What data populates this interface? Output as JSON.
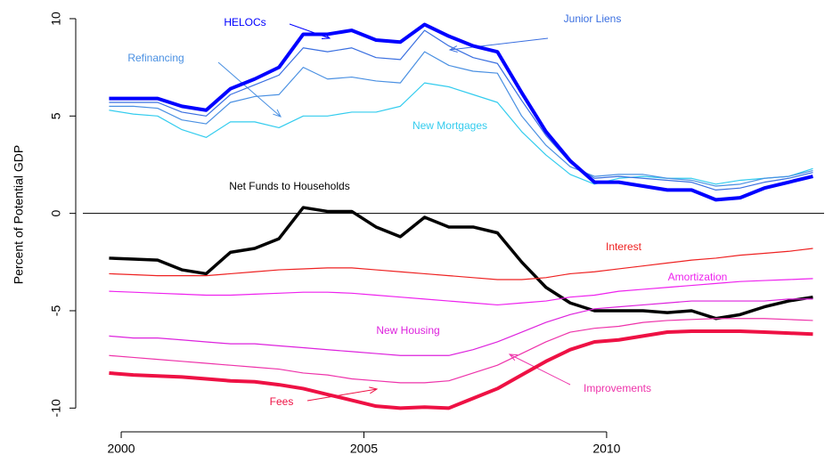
{
  "chart_data": {
    "type": "line",
    "y_label": "Percent of Potential GDP",
    "x": [
      1999.75,
      2000.25,
      2000.75,
      2001.25,
      2001.75,
      2002.25,
      2002.75,
      2003.25,
      2003.75,
      2004.25,
      2004.75,
      2005.25,
      2005.75,
      2006.25,
      2006.75,
      2007.25,
      2007.75,
      2008.25,
      2008.75,
      2009.25,
      2009.75,
      2010.25,
      2010.75,
      2011.25,
      2011.75,
      2012.25,
      2012.75,
      2013.25,
      2013.75,
      2014.25
    ],
    "xlim": [
      1999.21,
      2014.48
    ],
    "xticks": [
      2000,
      2005,
      2010
    ],
    "ylim": [
      -10.9,
      10.73
    ],
    "yticks": [
      -10,
      -5,
      0,
      5,
      10
    ],
    "series": [
      {
        "name": "New Mortgages",
        "color": "#33ccee",
        "values": [
          5.3,
          5.1,
          5.0,
          4.3,
          3.9,
          4.7,
          4.7,
          4.4,
          5.0,
          5.0,
          5.2,
          5.2,
          5.5,
          6.7,
          6.5,
          6.1,
          5.7,
          4.2,
          3.0,
          2.0,
          1.5,
          1.8,
          1.9,
          1.8,
          1.8,
          1.5,
          1.7,
          1.8,
          1.9,
          2.3
        ]
      },
      {
        "name": "Refinancing",
        "color": "#4a90e2",
        "values": [
          5.5,
          5.5,
          5.4,
          4.8,
          4.6,
          5.7,
          6.0,
          6.1,
          7.5,
          6.9,
          7.0,
          6.8,
          6.7,
          8.3,
          7.6,
          7.3,
          7.2,
          5.0,
          3.5,
          2.4,
          1.9,
          2.0,
          2.0,
          1.8,
          1.7,
          1.4,
          1.5,
          1.8,
          1.9,
          2.2
        ]
      },
      {
        "name": "Junior Liens",
        "color": "#3a6fe0",
        "values": [
          5.7,
          5.7,
          5.7,
          5.2,
          5.0,
          6.1,
          6.6,
          7.1,
          8.5,
          8.3,
          8.5,
          8.0,
          7.9,
          9.4,
          8.6,
          8.0,
          7.7,
          5.8,
          4.0,
          2.6,
          1.8,
          1.9,
          1.8,
          1.7,
          1.6,
          1.2,
          1.3,
          1.6,
          1.8,
          2.1
        ]
      },
      {
        "name": "HELOCs",
        "color": "#0000ff",
        "values": [
          5.9,
          5.9,
          5.9,
          5.5,
          5.3,
          6.4,
          6.9,
          7.5,
          9.2,
          9.2,
          9.4,
          8.9,
          8.8,
          9.7,
          9.1,
          8.6,
          8.3,
          6.2,
          4.2,
          2.7,
          1.6,
          1.6,
          1.4,
          1.2,
          1.2,
          0.7,
          0.8,
          1.3,
          1.6,
          1.9
        ]
      },
      {
        "name": "Net Funds to Households",
        "color": "#000000",
        "values": [
          -2.3,
          -2.35,
          -2.4,
          -2.9,
          -3.1,
          -2.0,
          -1.8,
          -1.3,
          0.3,
          0.1,
          0.1,
          -0.7,
          -1.2,
          -0.2,
          -0.7,
          -0.7,
          -1.0,
          -2.5,
          -3.8,
          -4.6,
          -5.0,
          -5.0,
          -5.0,
          -5.1,
          -5.0,
          -5.4,
          -5.2,
          -4.8,
          -4.5,
          -4.3
        ]
      },
      {
        "name": "Interest",
        "color": "#ee2222",
        "values": [
          -3.1,
          -3.15,
          -3.2,
          -3.2,
          -3.2,
          -3.1,
          -3.0,
          -2.9,
          -2.85,
          -2.8,
          -2.8,
          -2.9,
          -3.0,
          -3.1,
          -3.2,
          -3.3,
          -3.4,
          -3.4,
          -3.3,
          -3.1,
          -3.0,
          -2.85,
          -2.7,
          -2.55,
          -2.4,
          -2.3,
          -2.15,
          -2.05,
          -1.95,
          -1.8
        ]
      },
      {
        "name": "Amortization",
        "color": "#ee22ee",
        "values": [
          -4.0,
          -4.05,
          -4.1,
          -4.15,
          -4.2,
          -4.2,
          -4.15,
          -4.1,
          -4.05,
          -4.05,
          -4.1,
          -4.2,
          -4.3,
          -4.4,
          -4.5,
          -4.6,
          -4.7,
          -4.6,
          -4.5,
          -4.3,
          -4.2,
          -4.0,
          -3.9,
          -3.8,
          -3.7,
          -3.6,
          -3.5,
          -3.45,
          -3.4,
          -3.35
        ]
      },
      {
        "name": "New Housing",
        "color": "#dd22dd",
        "values": [
          -6.3,
          -6.4,
          -6.4,
          -6.5,
          -6.6,
          -6.7,
          -6.7,
          -6.8,
          -6.9,
          -7.0,
          -7.1,
          -7.2,
          -7.3,
          -7.3,
          -7.3,
          -7.0,
          -6.6,
          -6.1,
          -5.6,
          -5.2,
          -4.9,
          -4.8,
          -4.7,
          -4.6,
          -4.5,
          -4.5,
          -4.5,
          -4.5,
          -4.4,
          -4.4
        ]
      },
      {
        "name": "Improvements",
        "color": "#ee33aa",
        "values": [
          -7.3,
          -7.4,
          -7.5,
          -7.6,
          -7.7,
          -7.8,
          -7.9,
          -8.0,
          -8.2,
          -8.3,
          -8.5,
          -8.6,
          -8.7,
          -8.7,
          -8.6,
          -8.2,
          -7.8,
          -7.2,
          -6.6,
          -6.1,
          -5.9,
          -5.8,
          -5.6,
          -5.5,
          -5.45,
          -5.4,
          -5.4,
          -5.4,
          -5.45,
          -5.5
        ]
      },
      {
        "name": "Fees",
        "color": "#ee1144",
        "values": [
          -8.2,
          -8.3,
          -8.35,
          -8.4,
          -8.5,
          -8.6,
          -8.65,
          -8.8,
          -9.0,
          -9.3,
          -9.6,
          -9.9,
          -10.0,
          -9.95,
          -10.0,
          -9.5,
          -9.0,
          -8.3,
          -7.6,
          -7.0,
          -6.6,
          -6.5,
          -6.3,
          -6.1,
          -6.05,
          -6.05,
          -6.05,
          -6.1,
          -6.15,
          -6.2
        ]
      }
    ]
  }
}
